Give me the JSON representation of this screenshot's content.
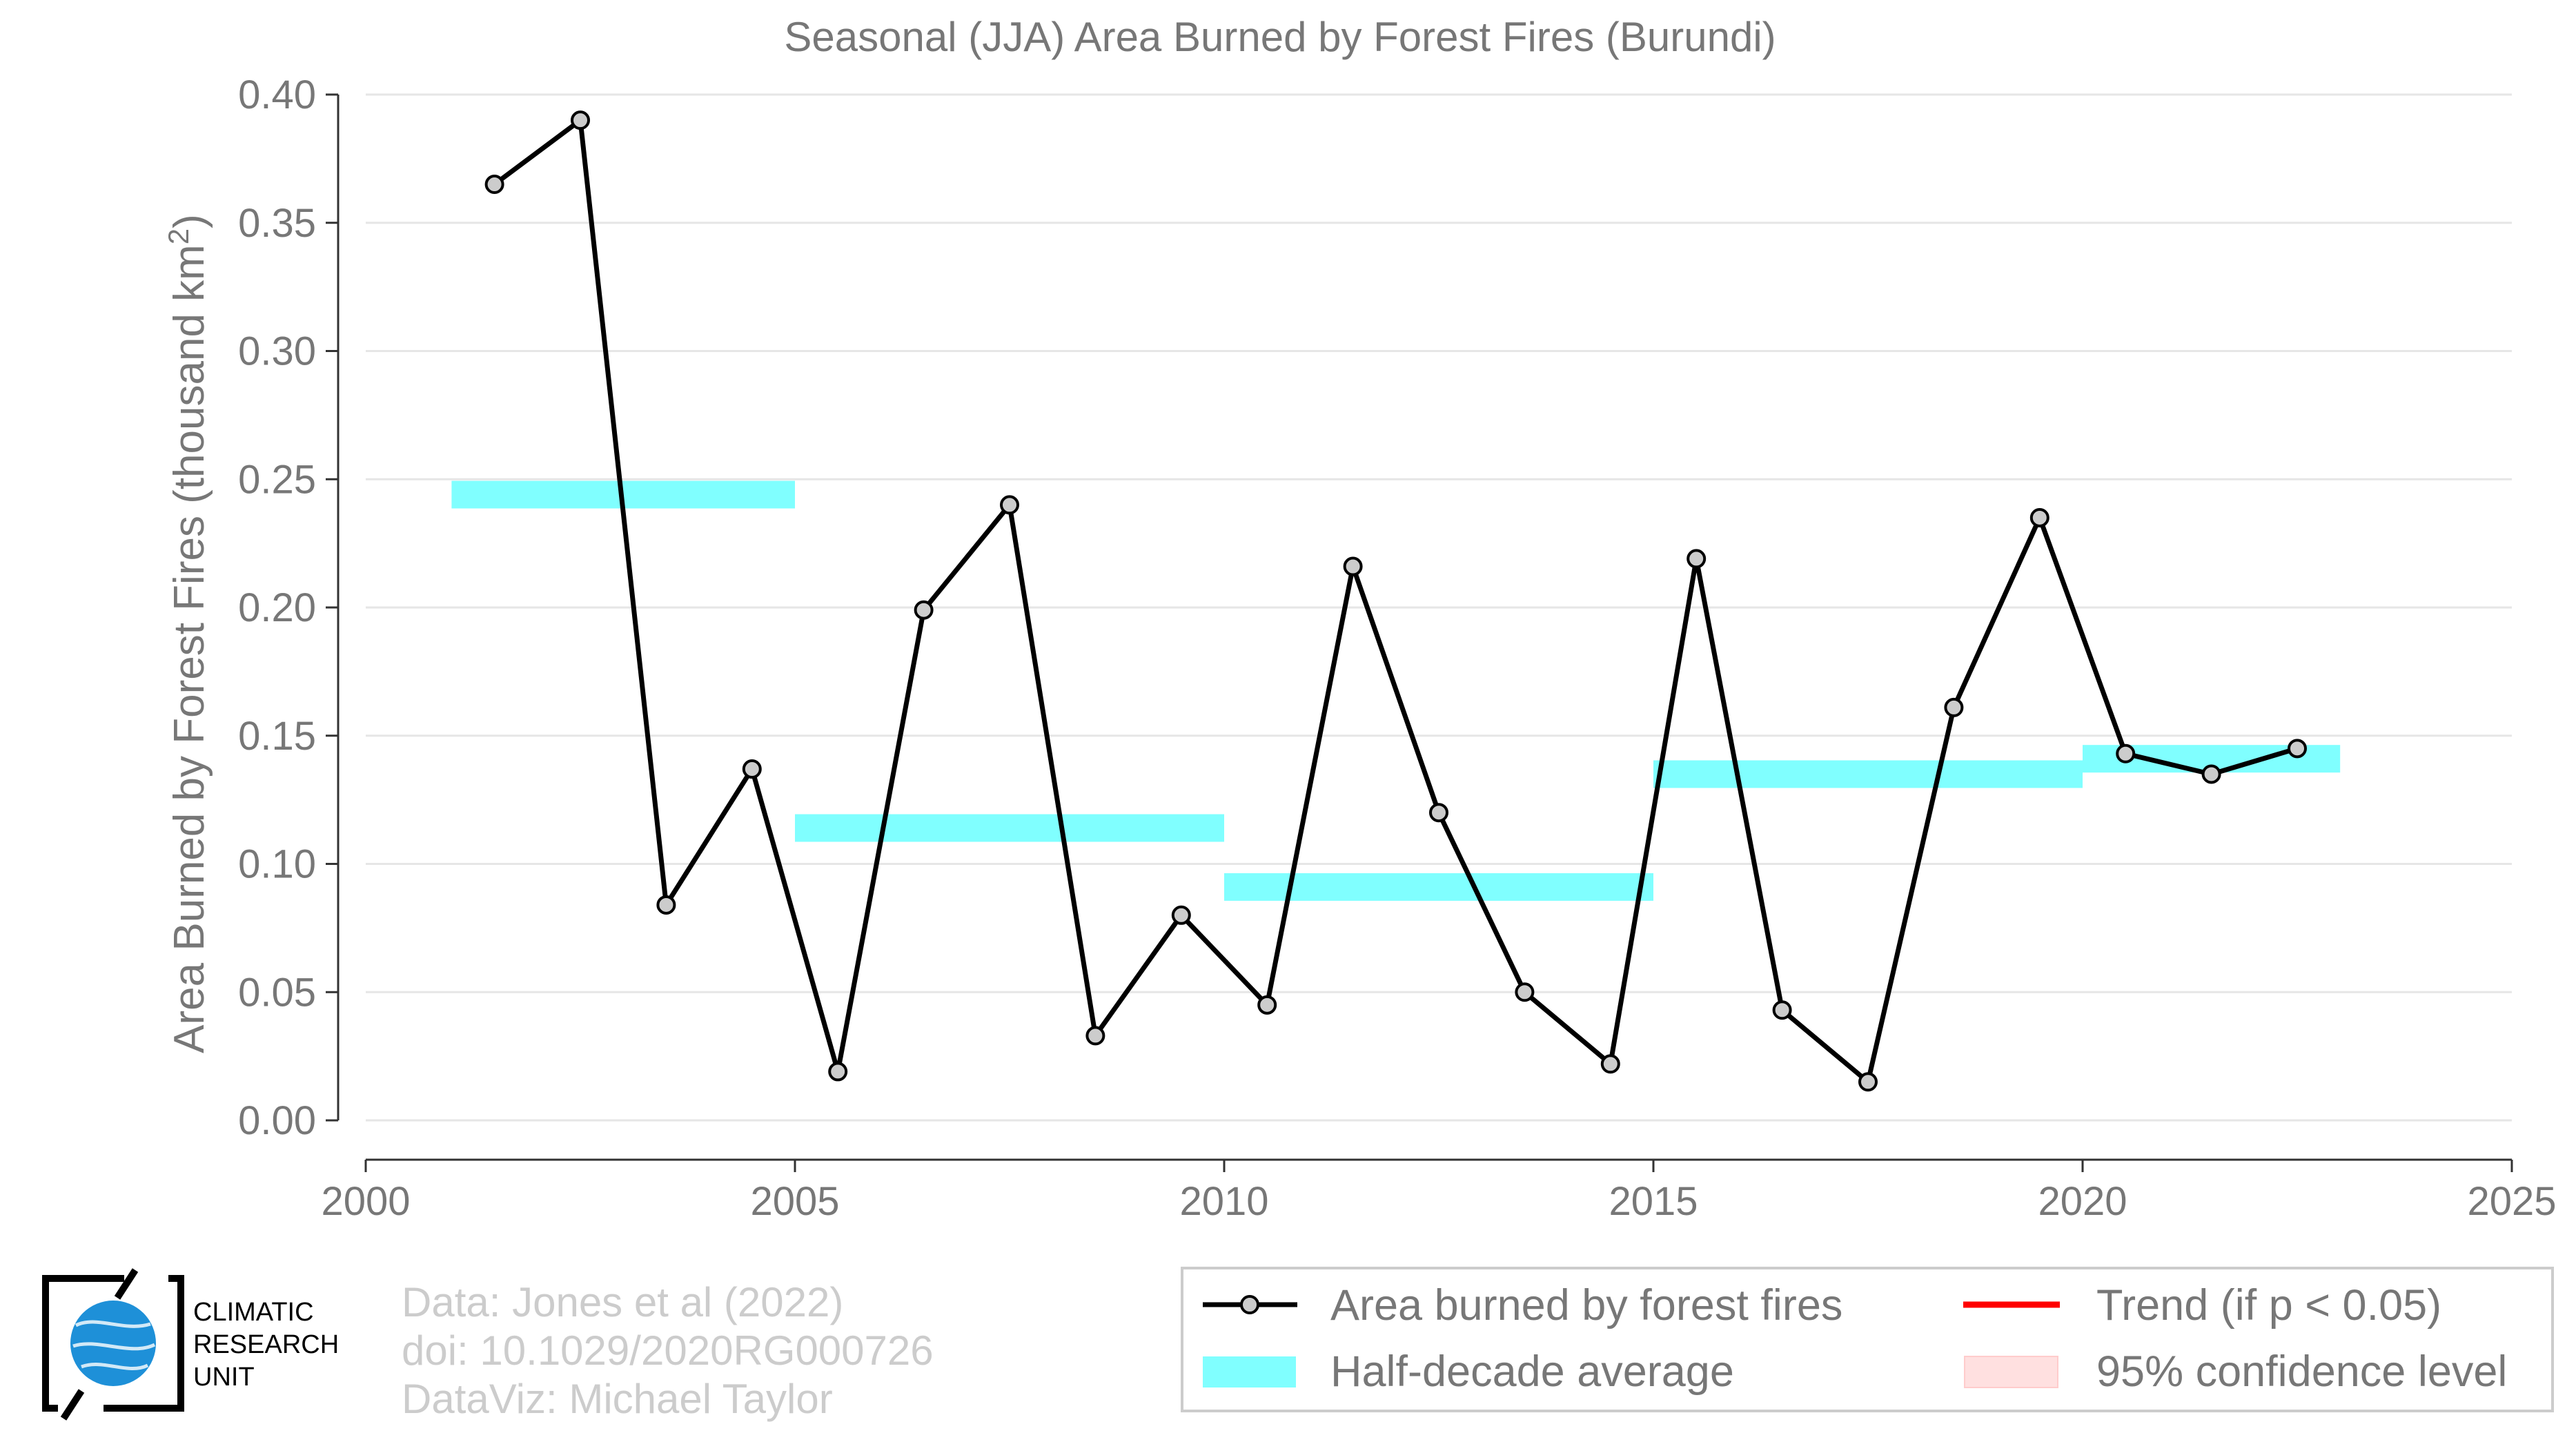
{
  "chart_data": {
    "type": "line",
    "title": "Seasonal (JJA) Area Burned by Forest Fires (Burundi)",
    "ylabel": "Area Burned by Forest Fires (thousand km",
    "ylabel_superscript": "2",
    "ylabel_suffix": ")",
    "xlabel": "",
    "xlim": [
      2000,
      2025
    ],
    "ylim": [
      0.0,
      0.4
    ],
    "x_ticks": [
      2000,
      2005,
      2010,
      2015,
      2020,
      2025
    ],
    "y_ticks": [
      0.0,
      0.05,
      0.1,
      0.15,
      0.2,
      0.25,
      0.3,
      0.35,
      0.4
    ],
    "y_tick_labels": [
      "0.00",
      "0.05",
      "0.10",
      "0.15",
      "0.20",
      "0.25",
      "0.30",
      "0.35",
      "0.40"
    ],
    "grid": "horizontal",
    "series": [
      {
        "name": "Area burned by forest fires",
        "type": "line",
        "color": "#000000",
        "marker_fill": "#cccccc",
        "x": [
          2001.5,
          2002.5,
          2003.5,
          2004.5,
          2005.5,
          2006.5,
          2007.5,
          2008.5,
          2009.5,
          2010.5,
          2011.5,
          2012.5,
          2013.5,
          2014.5,
          2015.5,
          2016.5,
          2017.5,
          2018.5,
          2019.5,
          2020.5,
          2021.5,
          2022.5
        ],
        "values": [
          0.365,
          0.39,
          0.084,
          0.137,
          0.019,
          0.199,
          0.24,
          0.033,
          0.08,
          0.045,
          0.216,
          0.12,
          0.05,
          0.022,
          0.219,
          0.043,
          0.015,
          0.161,
          0.235,
          0.143,
          0.135,
          0.145
        ]
      },
      {
        "name": "Half-decade average",
        "type": "step-bars",
        "color": "#80ffff",
        "segments": [
          {
            "x0": 2001,
            "x1": 2005,
            "value": 0.244
          },
          {
            "x0": 2005,
            "x1": 2010,
            "value": 0.114
          },
          {
            "x0": 2010,
            "x1": 2015,
            "value": 0.091
          },
          {
            "x0": 2015,
            "x1": 2020,
            "value": 0.135
          },
          {
            "x0": 2020,
            "x1": 2023,
            "value": 0.141
          }
        ]
      }
    ],
    "legend": {
      "placement": "bottom-right",
      "items": [
        {
          "label": "Area burned by forest fires",
          "kind": "line-marker",
          "color": "#000000"
        },
        {
          "label": "Trend (if p < 0.05)",
          "kind": "line",
          "color": "#ff0000"
        },
        {
          "label": "Half-decade average",
          "kind": "band",
          "color": "#80ffff"
        },
        {
          "label": "95% confidence level",
          "kind": "band",
          "color": "#ffe0e0"
        }
      ]
    }
  },
  "credits": {
    "line1": "Data: Jones et al (2022)",
    "line2": "doi: 10.1029/2020RG000726",
    "line3": "DataViz: Michael Taylor"
  },
  "logo": {
    "line1": "CLIMATIC",
    "line2": "RESEARCH",
    "line3": "UNIT",
    "globe_color": "#1e90d8"
  }
}
